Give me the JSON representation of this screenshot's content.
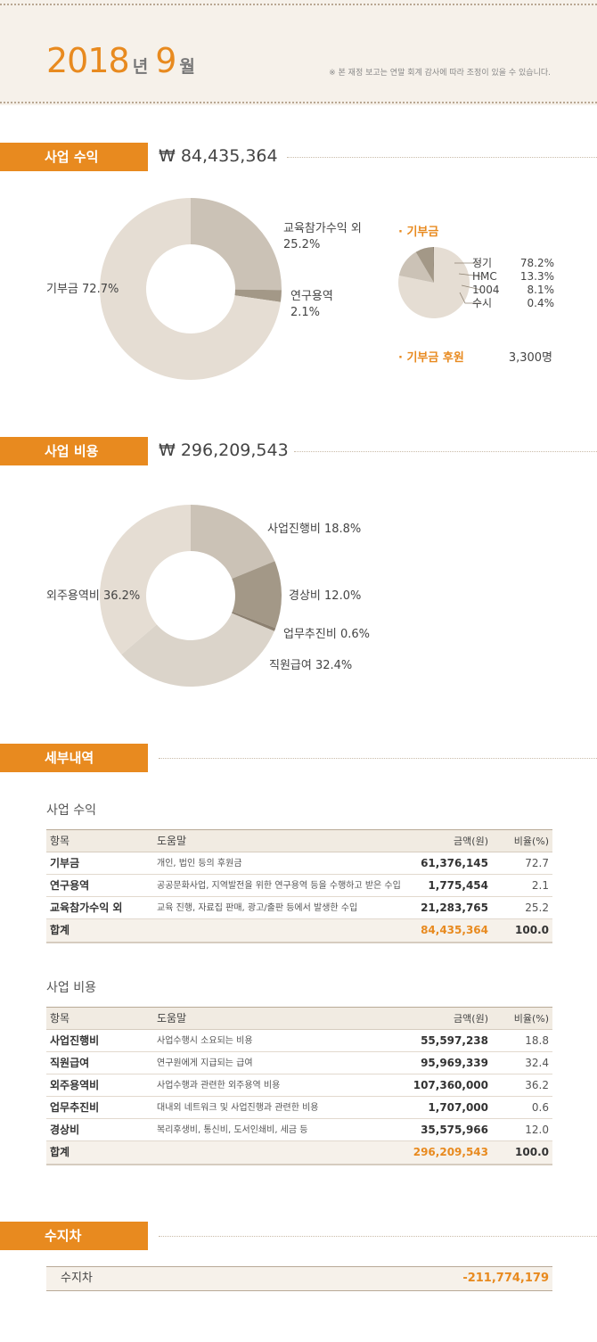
{
  "header": {
    "year": "2018",
    "year_unit": "년",
    "month": "9",
    "month_unit": "월",
    "notice": "※ 본 재정 보고는 연말 회계 감사에 따라 조정이 있을 수 있습니다."
  },
  "revenue": {
    "title": "사업 수익",
    "total": "₩ 84,435,364",
    "donation_title": "· 기부금",
    "sponsor_label": "· 기부금 후원",
    "sponsor_value": "3,300명"
  },
  "expense": {
    "title": "사업 비용",
    "total": "₩ 296,209,543"
  },
  "details": {
    "title": "세부내역",
    "revenue_table": {
      "title": "사업 수익",
      "headers": {
        "item": "항목",
        "desc": "도움말",
        "amount": "금액(원)",
        "rate": "비율(%)"
      },
      "rows": [
        {
          "item": "기부금",
          "desc": "개인, 법인 등의 후원금",
          "amount": "61,376,145",
          "rate": "72.7"
        },
        {
          "item": "연구용역",
          "desc": "공공문화사업, 지역발전을 위한 연구용역 등을 수행하고 받은 수입",
          "amount": "1,775,454",
          "rate": "2.1"
        },
        {
          "item": "교육참가수익 외",
          "desc": "교육 진행, 자료집 판매, 광고/출판 등에서 발생한 수입",
          "amount": "21,283,765",
          "rate": "25.2"
        }
      ],
      "total": {
        "item": "합계",
        "amount": "84,435,364",
        "rate": "100.0"
      }
    },
    "expense_table": {
      "title": "사업 비용",
      "headers": {
        "item": "항목",
        "desc": "도움말",
        "amount": "금액(원)",
        "rate": "비율(%)"
      },
      "rows": [
        {
          "item": "사업진행비",
          "desc": "사업수행시 소요되는 비용",
          "amount": "55,597,238",
          "rate": "18.8"
        },
        {
          "item": "직원급여",
          "desc": "연구원에게 지급되는 급여",
          "amount": "95,969,339",
          "rate": "32.4"
        },
        {
          "item": "외주용역비",
          "desc": "사업수행과 관련한 외주용역 비용",
          "amount": "107,360,000",
          "rate": "36.2"
        },
        {
          "item": "업무추진비",
          "desc": "대내외 네트워크 및 사업진행과 관련한 비용",
          "amount": "1,707,000",
          "rate": "0.6"
        },
        {
          "item": "경상비",
          "desc": "복리후생비, 통신비, 도서인쇄비, 세금 등",
          "amount": "35,575,966",
          "rate": "12.0"
        }
      ],
      "total": {
        "item": "합계",
        "amount": "296,209,543",
        "rate": "100.0"
      }
    }
  },
  "balance": {
    "title": "수지차",
    "label": "수지차",
    "value": "-211,774,179"
  },
  "colors": {
    "accent": "#e88a1f",
    "slice_light": "#e5ddd3",
    "slice_mid": "#cbc2b6",
    "slice_dark": "#a39887",
    "slice_darker": "#8c8070"
  },
  "chart_data": [
    {
      "type": "pie",
      "variant": "donut",
      "title": "사업 수익",
      "slices": [
        {
          "name": "교육참가수익 외",
          "value": 25.2,
          "label": "25.2%",
          "color": "#cbc2b6"
        },
        {
          "name": "연구용역",
          "value": 2.1,
          "label": "2.1%",
          "color": "#a39887"
        },
        {
          "name": "기부금",
          "value": 72.7,
          "label": "72.7%",
          "color": "#e5ddd3"
        }
      ]
    },
    {
      "type": "pie",
      "title": "· 기부금",
      "slices": [
        {
          "name": "정기",
          "value": 78.2,
          "label": "78.2%",
          "color": "#e5ddd3"
        },
        {
          "name": "HMC",
          "value": 13.3,
          "label": "13.3%",
          "color": "#cbc2b6"
        },
        {
          "name": "1004",
          "value": 8.1,
          "label": "8.1%",
          "color": "#a39887"
        },
        {
          "name": "수시",
          "value": 0.4,
          "label": "0.4%",
          "color": "#8c8070"
        }
      ]
    },
    {
      "type": "pie",
      "variant": "donut",
      "title": "사업 비용",
      "slices": [
        {
          "name": "사업진행비",
          "value": 18.8,
          "label": "18.8%",
          "color": "#cbc2b6"
        },
        {
          "name": "경상비",
          "value": 12.0,
          "label": "12.0%",
          "color": "#a39887"
        },
        {
          "name": "업무추진비",
          "value": 0.6,
          "label": "0.6%",
          "color": "#8c8070"
        },
        {
          "name": "직원급여",
          "value": 32.4,
          "label": "32.4%",
          "color": "#dbd4ca"
        },
        {
          "name": "외주용역비",
          "value": 36.2,
          "label": "36.2%",
          "color": "#e5ddd3"
        }
      ]
    }
  ]
}
